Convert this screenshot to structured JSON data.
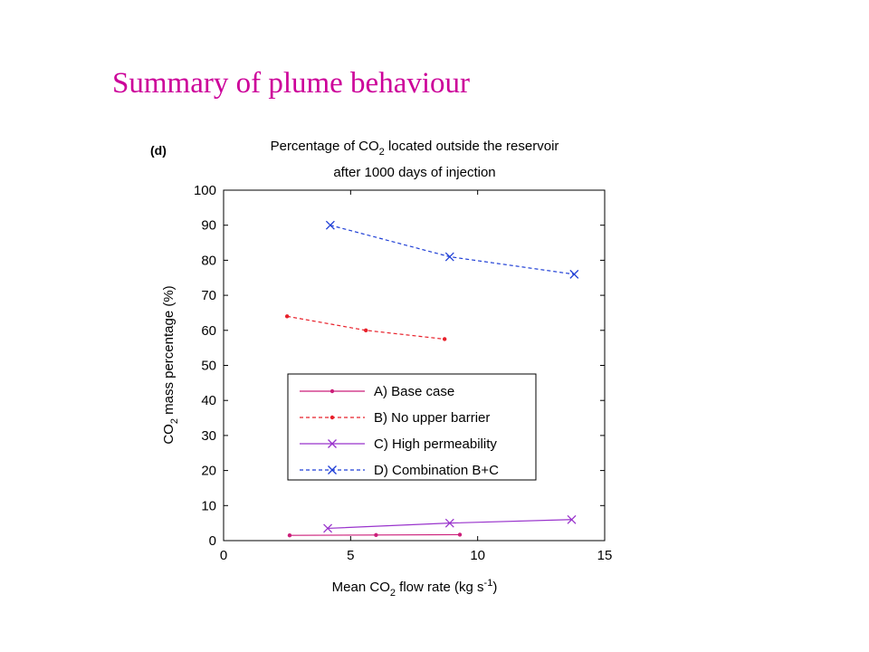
{
  "slide": {
    "title": "Summary of plume behaviour"
  },
  "chart_data": {
    "type": "line",
    "panel_label": "(d)",
    "title": "Percentage of CO₂ located outside the reservoir after 1000 days of injection",
    "title_parts": {
      "line1_before": "Percentage of CO",
      "line1_sub": "2",
      "line1_after": " located outside the reservoir",
      "line2": "after 1000 days of injection"
    },
    "xlabel": "Mean CO₂ flow rate (kg s⁻¹)",
    "xlabel_parts": {
      "before": "Mean CO",
      "sub": "2",
      "middle": " flow rate (kg s",
      "sup": "-1",
      "after": ")"
    },
    "ylabel": "CO₂ mass percentage (%)",
    "ylabel_parts": {
      "before": "CO",
      "sub": "2",
      "after": " mass percentage (%)"
    },
    "xlim": [
      0,
      15
    ],
    "ylim": [
      0,
      100
    ],
    "xticks": [
      0,
      5,
      10,
      15
    ],
    "yticks": [
      0,
      10,
      20,
      30,
      40,
      50,
      60,
      70,
      80,
      90,
      100
    ],
    "grid": false,
    "legend_position": "center",
    "series": [
      {
        "name": "A) Base case",
        "color": "#cc1f7a",
        "dash": "solid",
        "marker": "dot",
        "x": [
          2.6,
          6.0,
          9.3
        ],
        "y": [
          1.5,
          1.6,
          1.7
        ]
      },
      {
        "name": "B) No upper barrier",
        "color": "#e8202a",
        "dash": "dashed",
        "marker": "dot",
        "x": [
          2.5,
          5.6,
          8.7
        ],
        "y": [
          64,
          60,
          57.5
        ]
      },
      {
        "name": "C) High permeability",
        "color": "#9933cc",
        "dash": "solid",
        "marker": "x",
        "x": [
          4.1,
          8.9,
          13.7
        ],
        "y": [
          3.5,
          5,
          6
        ]
      },
      {
        "name": "D) Combination B+C",
        "color": "#1f3fd6",
        "dash": "dashed",
        "marker": "x",
        "x": [
          4.2,
          8.9,
          13.8
        ],
        "y": [
          90,
          81,
          76
        ]
      }
    ]
  }
}
